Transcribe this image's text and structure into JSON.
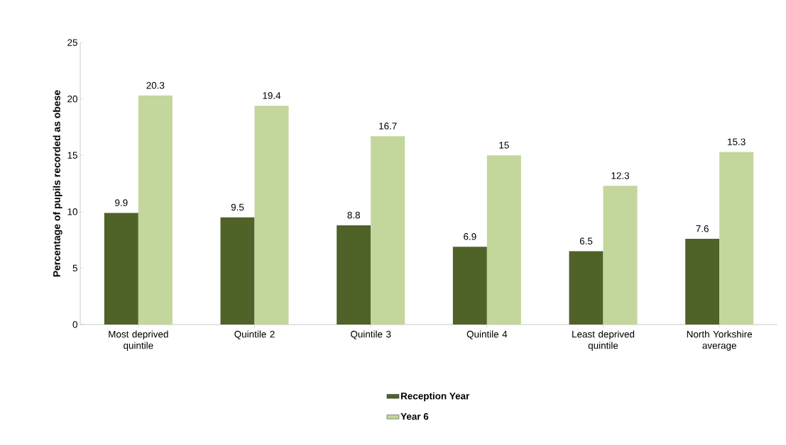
{
  "chart_data": {
    "type": "bar",
    "ylabel": "Percentage of pupils recorded as obese",
    "categories": [
      "Most deprived quintile",
      "Quintile 2",
      "Quintile 3",
      "Quintile 4",
      "Least deprived quintile",
      "North Yorkshire average"
    ],
    "series": [
      {
        "name": "Reception Year",
        "color": "#4f6228",
        "values": [
          9.9,
          9.5,
          8.8,
          6.9,
          6.5,
          7.6
        ]
      },
      {
        "name": "Year 6",
        "color": "#c3d69b",
        "values": [
          20.3,
          19.4,
          16.7,
          15,
          12.3,
          15.3
        ]
      }
    ],
    "ylim": [
      0,
      25
    ],
    "yticks": [
      0,
      5,
      10,
      15,
      20,
      25
    ],
    "grid": false,
    "legend": "bottom",
    "data_labels": true
  }
}
